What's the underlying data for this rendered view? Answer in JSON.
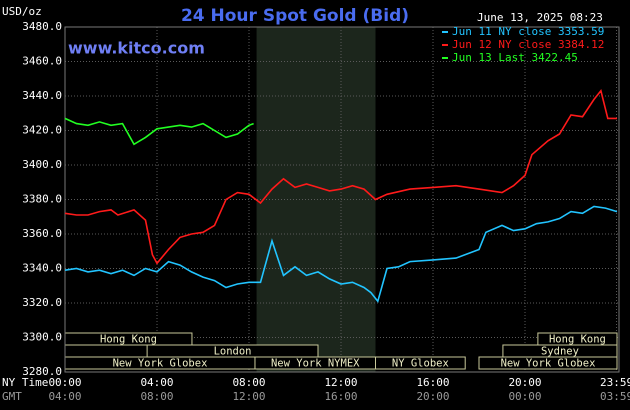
{
  "chart_data": {
    "type": "line",
    "title": "24 Hour Spot Gold (Bid)",
    "subtitle": "June 13, 2025 08:23",
    "annotation": "www.kitco.com",
    "ylabel": "USD/oz",
    "xlabel": "NY Time",
    "x2label": "GMT",
    "xlim": [
      0,
      24
    ],
    "ylim": [
      3280,
      3480
    ],
    "grid": true,
    "yticks": [
      {
        "value": 3280,
        "label": "3280.0"
      },
      {
        "value": 3300,
        "label": "3300.0"
      },
      {
        "value": 3320,
        "label": "3320.0"
      },
      {
        "value": 3340,
        "label": "3340.0"
      },
      {
        "value": 3360,
        "label": "3360.0"
      },
      {
        "value": 3380,
        "label": "3380.0"
      },
      {
        "value": 3400,
        "label": "3400.0"
      },
      {
        "value": 3420,
        "label": "3420.0"
      },
      {
        "value": 3440,
        "label": "3440.0"
      },
      {
        "value": 3460,
        "label": "3460.0"
      },
      {
        "value": 3480,
        "label": "3480.0"
      }
    ],
    "xticks": [
      {
        "value": 0,
        "label": "00:00"
      },
      {
        "value": 4,
        "label": "04:00"
      },
      {
        "value": 8,
        "label": "08:00"
      },
      {
        "value": 12,
        "label": "12:00"
      },
      {
        "value": 16,
        "label": "16:00"
      },
      {
        "value": 20,
        "label": "20:00"
      },
      {
        "value": 23.98,
        "label": "23:59"
      }
    ],
    "x2ticks": [
      {
        "value": 0,
        "label": "04:00"
      },
      {
        "value": 4,
        "label": "08:00"
      },
      {
        "value": 8,
        "label": "12:00"
      },
      {
        "value": 12,
        "label": "16:00"
      },
      {
        "value": 16,
        "label": "20:00"
      },
      {
        "value": 20,
        "label": "00:00"
      },
      {
        "value": 23.98,
        "label": "03:59"
      }
    ],
    "shaded_range": [
      8.33,
      13.5
    ],
    "session_rows": [
      [
        {
          "label": "Hong Kong",
          "start": 0,
          "end": 5.52
        },
        {
          "label": "Hong Kong",
          "start": 20.56,
          "end": 24
        }
      ],
      [
        {
          "label": "London",
          "start": 3.57,
          "end": 11
        },
        {
          "label": "Sydney",
          "start": 19.04,
          "end": 24
        }
      ],
      [
        {
          "label": "New York Globex",
          "start": 0,
          "end": 8.26
        },
        {
          "label": "New York NYMEX",
          "start": 8.26,
          "end": 13.5
        },
        {
          "label": "NY Globex",
          "start": 13.5,
          "end": 17.4
        },
        {
          "label": "New York Globex",
          "start": 18,
          "end": 24
        }
      ]
    ],
    "series": [
      {
        "name": "Jun 11 NY close 3353.59",
        "color": "#22c4ff",
        "x": [
          0,
          0.5,
          1,
          1.5,
          2,
          2.5,
          3,
          3.5,
          4,
          4.5,
          5,
          5.5,
          6,
          6.5,
          7,
          7.5,
          8,
          8.5,
          9,
          9.5,
          10,
          10.5,
          11,
          11.5,
          12,
          12.5,
          13,
          13.3,
          13.6,
          14,
          14.5,
          15,
          16,
          17,
          18,
          18.3,
          19,
          19.5,
          20,
          20.5,
          21,
          21.5,
          22,
          22.5,
          23,
          23.5,
          24
        ],
        "values": [
          3339,
          3340,
          3338,
          3339,
          3337,
          3339,
          3336,
          3340,
          3338,
          3344,
          3342,
          3338,
          3335,
          3333,
          3329,
          3331,
          3332,
          3332,
          3356,
          3336,
          3341,
          3336,
          3338,
          3334,
          3331,
          3332,
          3329,
          3326,
          3321,
          3340,
          3341,
          3344,
          3345,
          3346,
          3351,
          3361,
          3365,
          3362,
          3363,
          3366,
          3367,
          3369,
          3373,
          3372,
          3376,
          3375,
          3373
        ]
      },
      {
        "name": "Jun 12 NY close 3384.12",
        "color": "#ff1a1a",
        "x": [
          0,
          0.5,
          1,
          1.5,
          2,
          2.3,
          3,
          3.5,
          3.8,
          4,
          4.5,
          5,
          5.5,
          6,
          6.5,
          7,
          7.5,
          8,
          8.5,
          9,
          9.5,
          10,
          10.5,
          11,
          11.5,
          12,
          12.5,
          13,
          13.5,
          14,
          15,
          16,
          17,
          18,
          19,
          19.5,
          20,
          20.3,
          21,
          21.5,
          22,
          22.5,
          23,
          23.3,
          23.6,
          24
        ],
        "values": [
          3372,
          3371,
          3371,
          3373,
          3374,
          3371,
          3374,
          3368,
          3348,
          3343,
          3351,
          3358,
          3360,
          3361,
          3365,
          3380,
          3384,
          3383,
          3378,
          3386,
          3392,
          3387,
          3389,
          3387,
          3385,
          3386,
          3388,
          3386,
          3380,
          3383,
          3386,
          3387,
          3388,
          3386,
          3384,
          3388,
          3394,
          3406,
          3414,
          3418,
          3429,
          3428,
          3438,
          3443,
          3427,
          3427
        ]
      },
      {
        "name": "Jun 13 Last 3422.45",
        "color": "#22ff22",
        "x": [
          0,
          0.5,
          1,
          1.5,
          2,
          2.5,
          3,
          3.5,
          4,
          4.5,
          5,
          5.5,
          6,
          6.5,
          7,
          7.5,
          8,
          8.2
        ],
        "values": [
          3427,
          3424,
          3423,
          3425,
          3423,
          3424,
          3412,
          3416,
          3421,
          3422,
          3423,
          3422,
          3424,
          3420,
          3416,
          3418,
          3423,
          3424
        ]
      }
    ]
  }
}
